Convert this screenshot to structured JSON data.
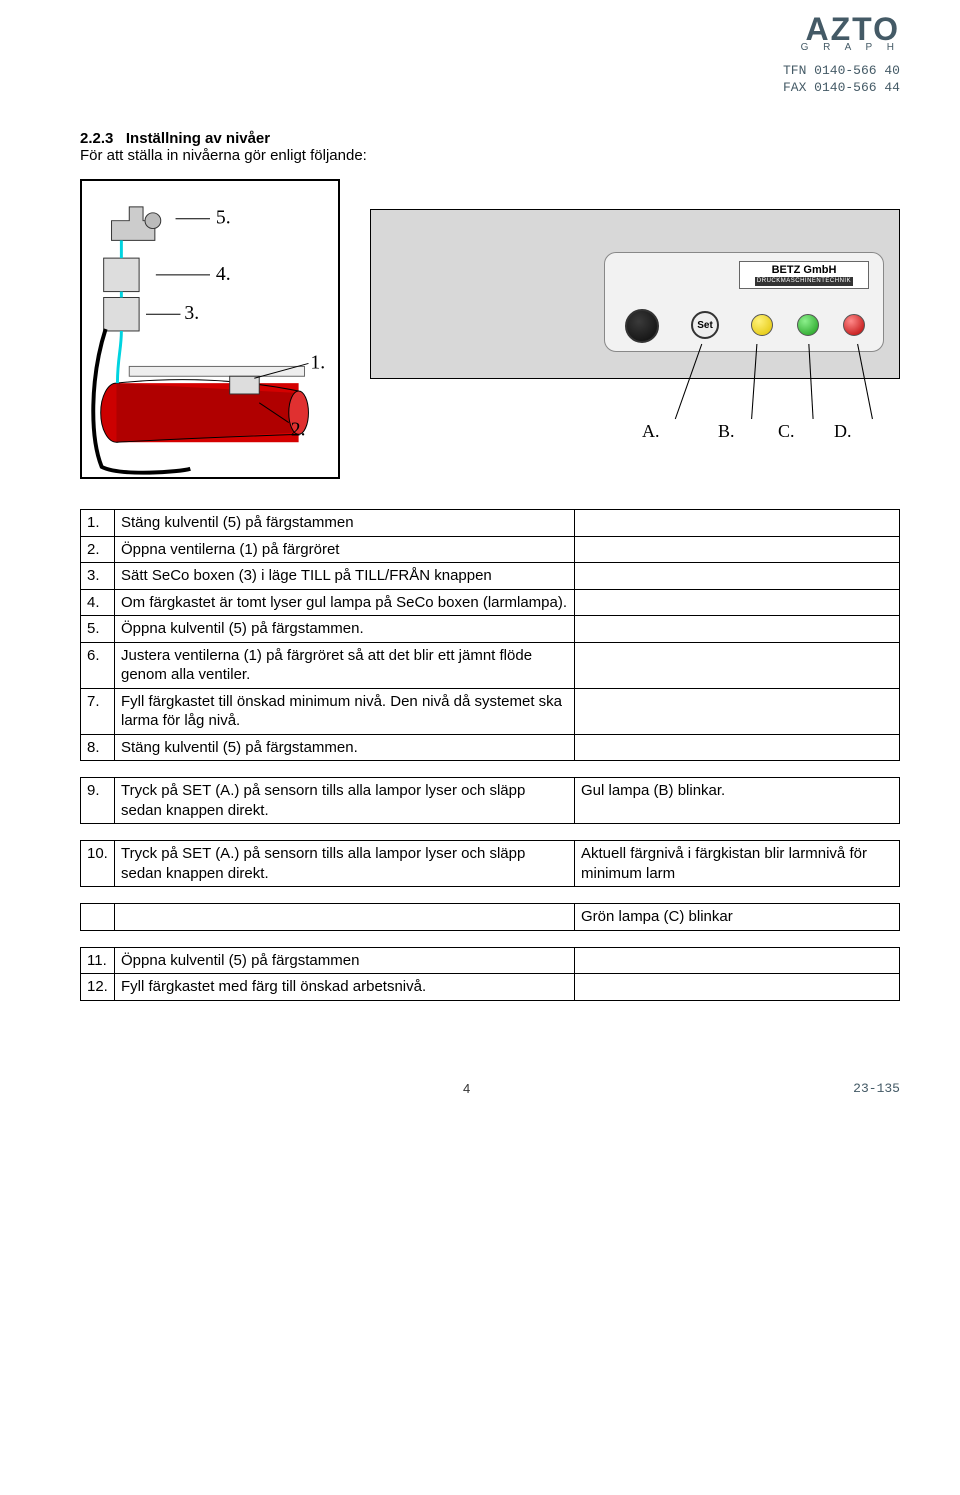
{
  "logo": {
    "name": "AZTO",
    "sub": "G R A P H"
  },
  "contact": {
    "tfn": "TFN 0140-566 40",
    "fax": "FAX 0140-566 44"
  },
  "heading": {
    "number": "2.2.3",
    "title": "Inställning av nivåer",
    "intro": "För att ställa in nivåerna gör enligt följande:"
  },
  "figure1": {
    "labels": {
      "n1": "1.",
      "n2": "2.",
      "n3": "3.",
      "n4": "4.",
      "n5": "5."
    }
  },
  "figure2": {
    "betz_top": "BETZ GmbH",
    "betz_sub": "DRUCKMASCHINENTECHNIK",
    "set": "Set",
    "labels": {
      "A": "A.",
      "B": "B.",
      "C": "C.",
      "D": "D."
    }
  },
  "steps": [
    {
      "n": "1.",
      "t": "Stäng kulventil (5) på färgstammen",
      "s": ""
    },
    {
      "n": "2.",
      "t": "Öppna ventilerna (1) på färgröret",
      "s": ""
    },
    {
      "n": "3.",
      "t": "Sätt SeCo boxen (3) i läge TILL på TILL/FRÅN knappen",
      "s": ""
    },
    {
      "n": "4.",
      "t": "Om färgkastet är tomt lyser gul lampa på SeCo boxen (larmlampa).",
      "s": ""
    },
    {
      "n": "5.",
      "t": "Öppna kulventil (5) på färgstammen.",
      "s": ""
    },
    {
      "n": "6.",
      "t": "Justera ventilerna (1) på färgröret så att det blir ett jämnt flöde genom alla ventiler.",
      "s": ""
    },
    {
      "n": "7.",
      "t": "Fyll färgkastet till önskad minimum nivå. Den nivå då systemet ska larma för låg nivå.",
      "s": ""
    },
    {
      "n": "8.",
      "t": "Stäng kulventil (5) på färgstammen.",
      "s": ""
    }
  ],
  "step9": {
    "n": "9.",
    "t": "Tryck på SET (A.) på sensorn tills alla lampor lyser och släpp sedan knappen direkt.",
    "s": "Gul lampa (B) blinkar."
  },
  "step10": {
    "n": "10.",
    "t": "Tryck på SET (A.) på sensorn tills alla lampor lyser och släpp sedan knappen direkt.",
    "s": "Aktuell färgnivå i färgkistan blir larmnivå för minimum larm"
  },
  "step10b": {
    "s": "Grön lampa (C) blinkar"
  },
  "step11": {
    "n": "11.",
    "t": "Öppna kulventil (5) på färgstammen",
    "s": ""
  },
  "step12": {
    "n": "12.",
    "t": "Fyll färgkastet med färg till önskad arbetsnivå.",
    "s": ""
  },
  "footer": {
    "page": "4",
    "docid": "23-135"
  }
}
